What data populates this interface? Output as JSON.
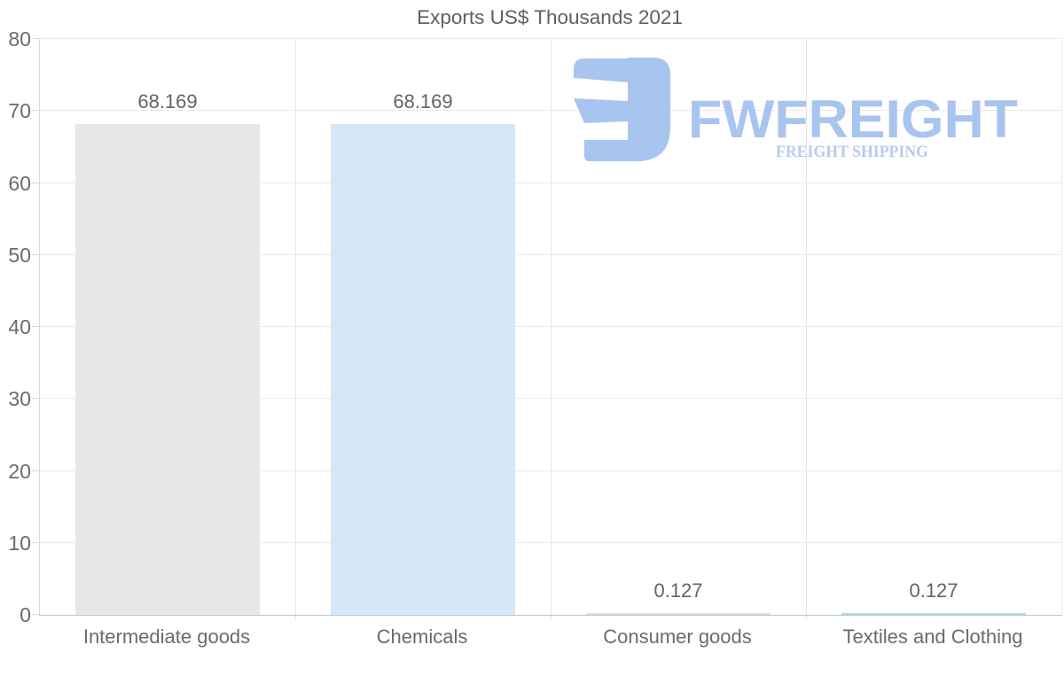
{
  "title": "Exports US$ Thousands 2021",
  "watermark": {
    "brand": "FWFREIGHT",
    "tagline": "FREIGHT SHIPPING",
    "icon_color": "#a8c5f0",
    "brand_color": "#a9c4ee",
    "tagline_color": "#b6cbf0"
  },
  "chart_data": {
    "type": "bar",
    "title": "Exports US$ Thousands 2021",
    "categories": [
      "Intermediate goods",
      "Chemicals",
      "Consumer goods",
      "Textiles and Clothing"
    ],
    "values": [
      68.169,
      68.169,
      0.127,
      0.127
    ],
    "value_labels": [
      "68.169",
      "68.169",
      "0.127",
      "0.127"
    ],
    "bar_colors": [
      "#e7e7e8",
      "#d6e8f8",
      "#e0e0e1",
      "#a9dbec"
    ],
    "xlabel": "",
    "ylabel": "",
    "ylim": [
      0,
      80
    ],
    "yticks": [
      0,
      10,
      20,
      30,
      40,
      50,
      60,
      70,
      80
    ],
    "grid": true,
    "legend": false,
    "orientation": "vertical"
  },
  "colors": {
    "background": "#ffffff",
    "title_text": "#5f6062",
    "tick_text": "#6a6b6d",
    "value_label_text": "#636466",
    "hgrid": "#e9eaeb",
    "vgrid": "#e3e4e5",
    "baseline": "#c6c7c8",
    "axis_line": "#d8d9da"
  }
}
